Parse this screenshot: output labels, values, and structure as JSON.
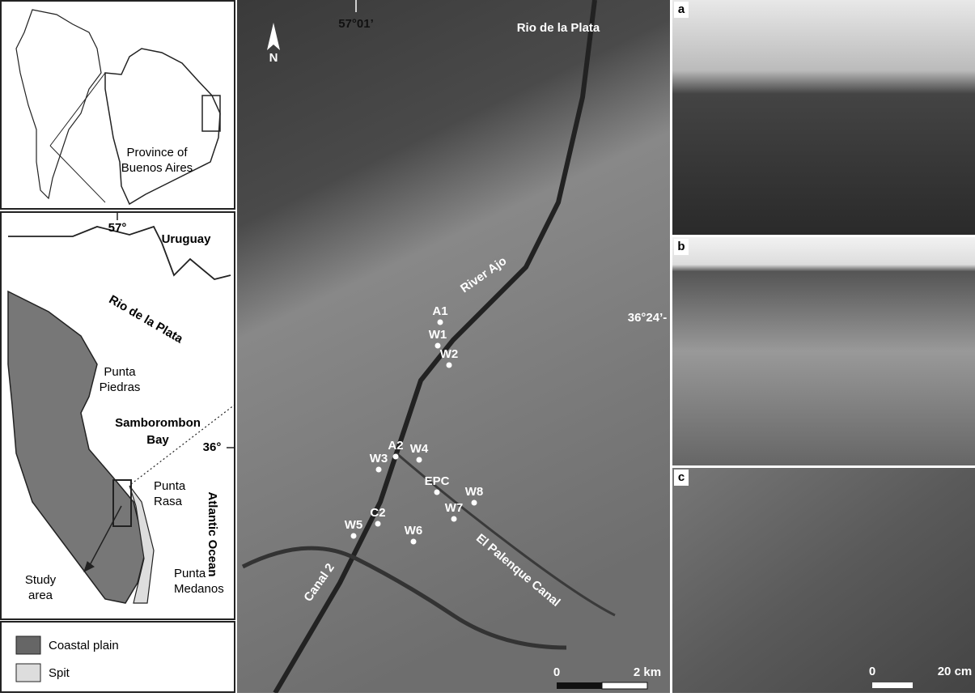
{
  "inset": {
    "lines": [
      "Province of",
      "Buenos Aires"
    ]
  },
  "regional_map": {
    "longitude": "57°",
    "latitude": "36°",
    "uruguay": "Uruguay",
    "river": "Rio de la Plata",
    "punta_piedras": [
      "Punta",
      "Piedras"
    ],
    "bay": [
      "Samborombon",
      "Bay"
    ],
    "ocean": "Atlantic Ocean",
    "punta_rasa": [
      "Punta",
      "Rasa"
    ],
    "study_area": [
      "Study",
      "area"
    ],
    "punta_medanos": [
      "Punta",
      "Medanos"
    ]
  },
  "legend": {
    "items": [
      "Coastal plain",
      "Spit"
    ]
  },
  "satellite": {
    "longitude": "57°01’",
    "latitude": "36°24’-",
    "river": "Rio de la Plata",
    "north": "N",
    "river_ajo": "River Ajo",
    "canal_palenque": "El Palenque Canal",
    "canal_2": "Canal 2",
    "sites": [
      "A1",
      "W1",
      "W2",
      "A2",
      "W4",
      "W3",
      "EPC",
      "W8",
      "W7",
      "C2",
      "W5",
      "W6"
    ],
    "scale": [
      "0",
      "2 km"
    ]
  },
  "photos": {
    "labels": [
      "a",
      "b",
      "c"
    ],
    "scale": [
      "0",
      "20 cm"
    ]
  }
}
